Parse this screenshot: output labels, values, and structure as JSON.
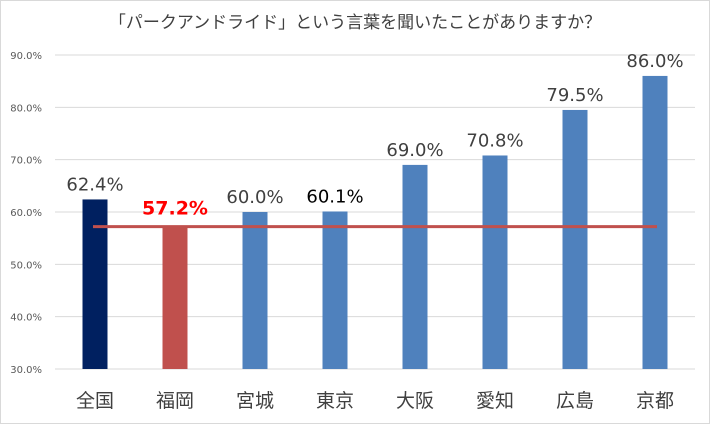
{
  "chart_data": {
    "type": "bar",
    "title": "「パークアンドライド」という言葉を聞いたことがありますか？",
    "categories": [
      "全国",
      "福岡",
      "宮城",
      "東京",
      "大阪",
      "愛知",
      "広島",
      "京都"
    ],
    "values": [
      62.4,
      57.2,
      60.0,
      60.1,
      69.0,
      70.8,
      79.5,
      86.0
    ],
    "value_labels": [
      "62.4%",
      "57.2%",
      "60.0%",
      "60.1%",
      "69.0%",
      "70.8%",
      "79.5%",
      "86.0%"
    ],
    "bar_colors": [
      "#002060",
      "#c0504d",
      "#4f81bd",
      "#4f81bd",
      "#4f81bd",
      "#4f81bd",
      "#4f81bd",
      "#4f81bd"
    ],
    "label_colors": [
      "#404040",
      "#ff0000",
      "#404040",
      "#000000",
      "#404040",
      "#404040",
      "#404040",
      "#404040"
    ],
    "reference_line": {
      "value": 57.2,
      "color": "#c0504d"
    },
    "ylim": [
      30,
      90
    ],
    "yticks": [
      30,
      40,
      50,
      60,
      70,
      80,
      90
    ],
    "ytick_labels": [
      "30.0%",
      "40.0%",
      "50.0%",
      "60.0%",
      "70.0%",
      "80.0%",
      "90.0%"
    ],
    "xlabel": "",
    "ylabel": "",
    "grid": true,
    "legend": "none"
  }
}
